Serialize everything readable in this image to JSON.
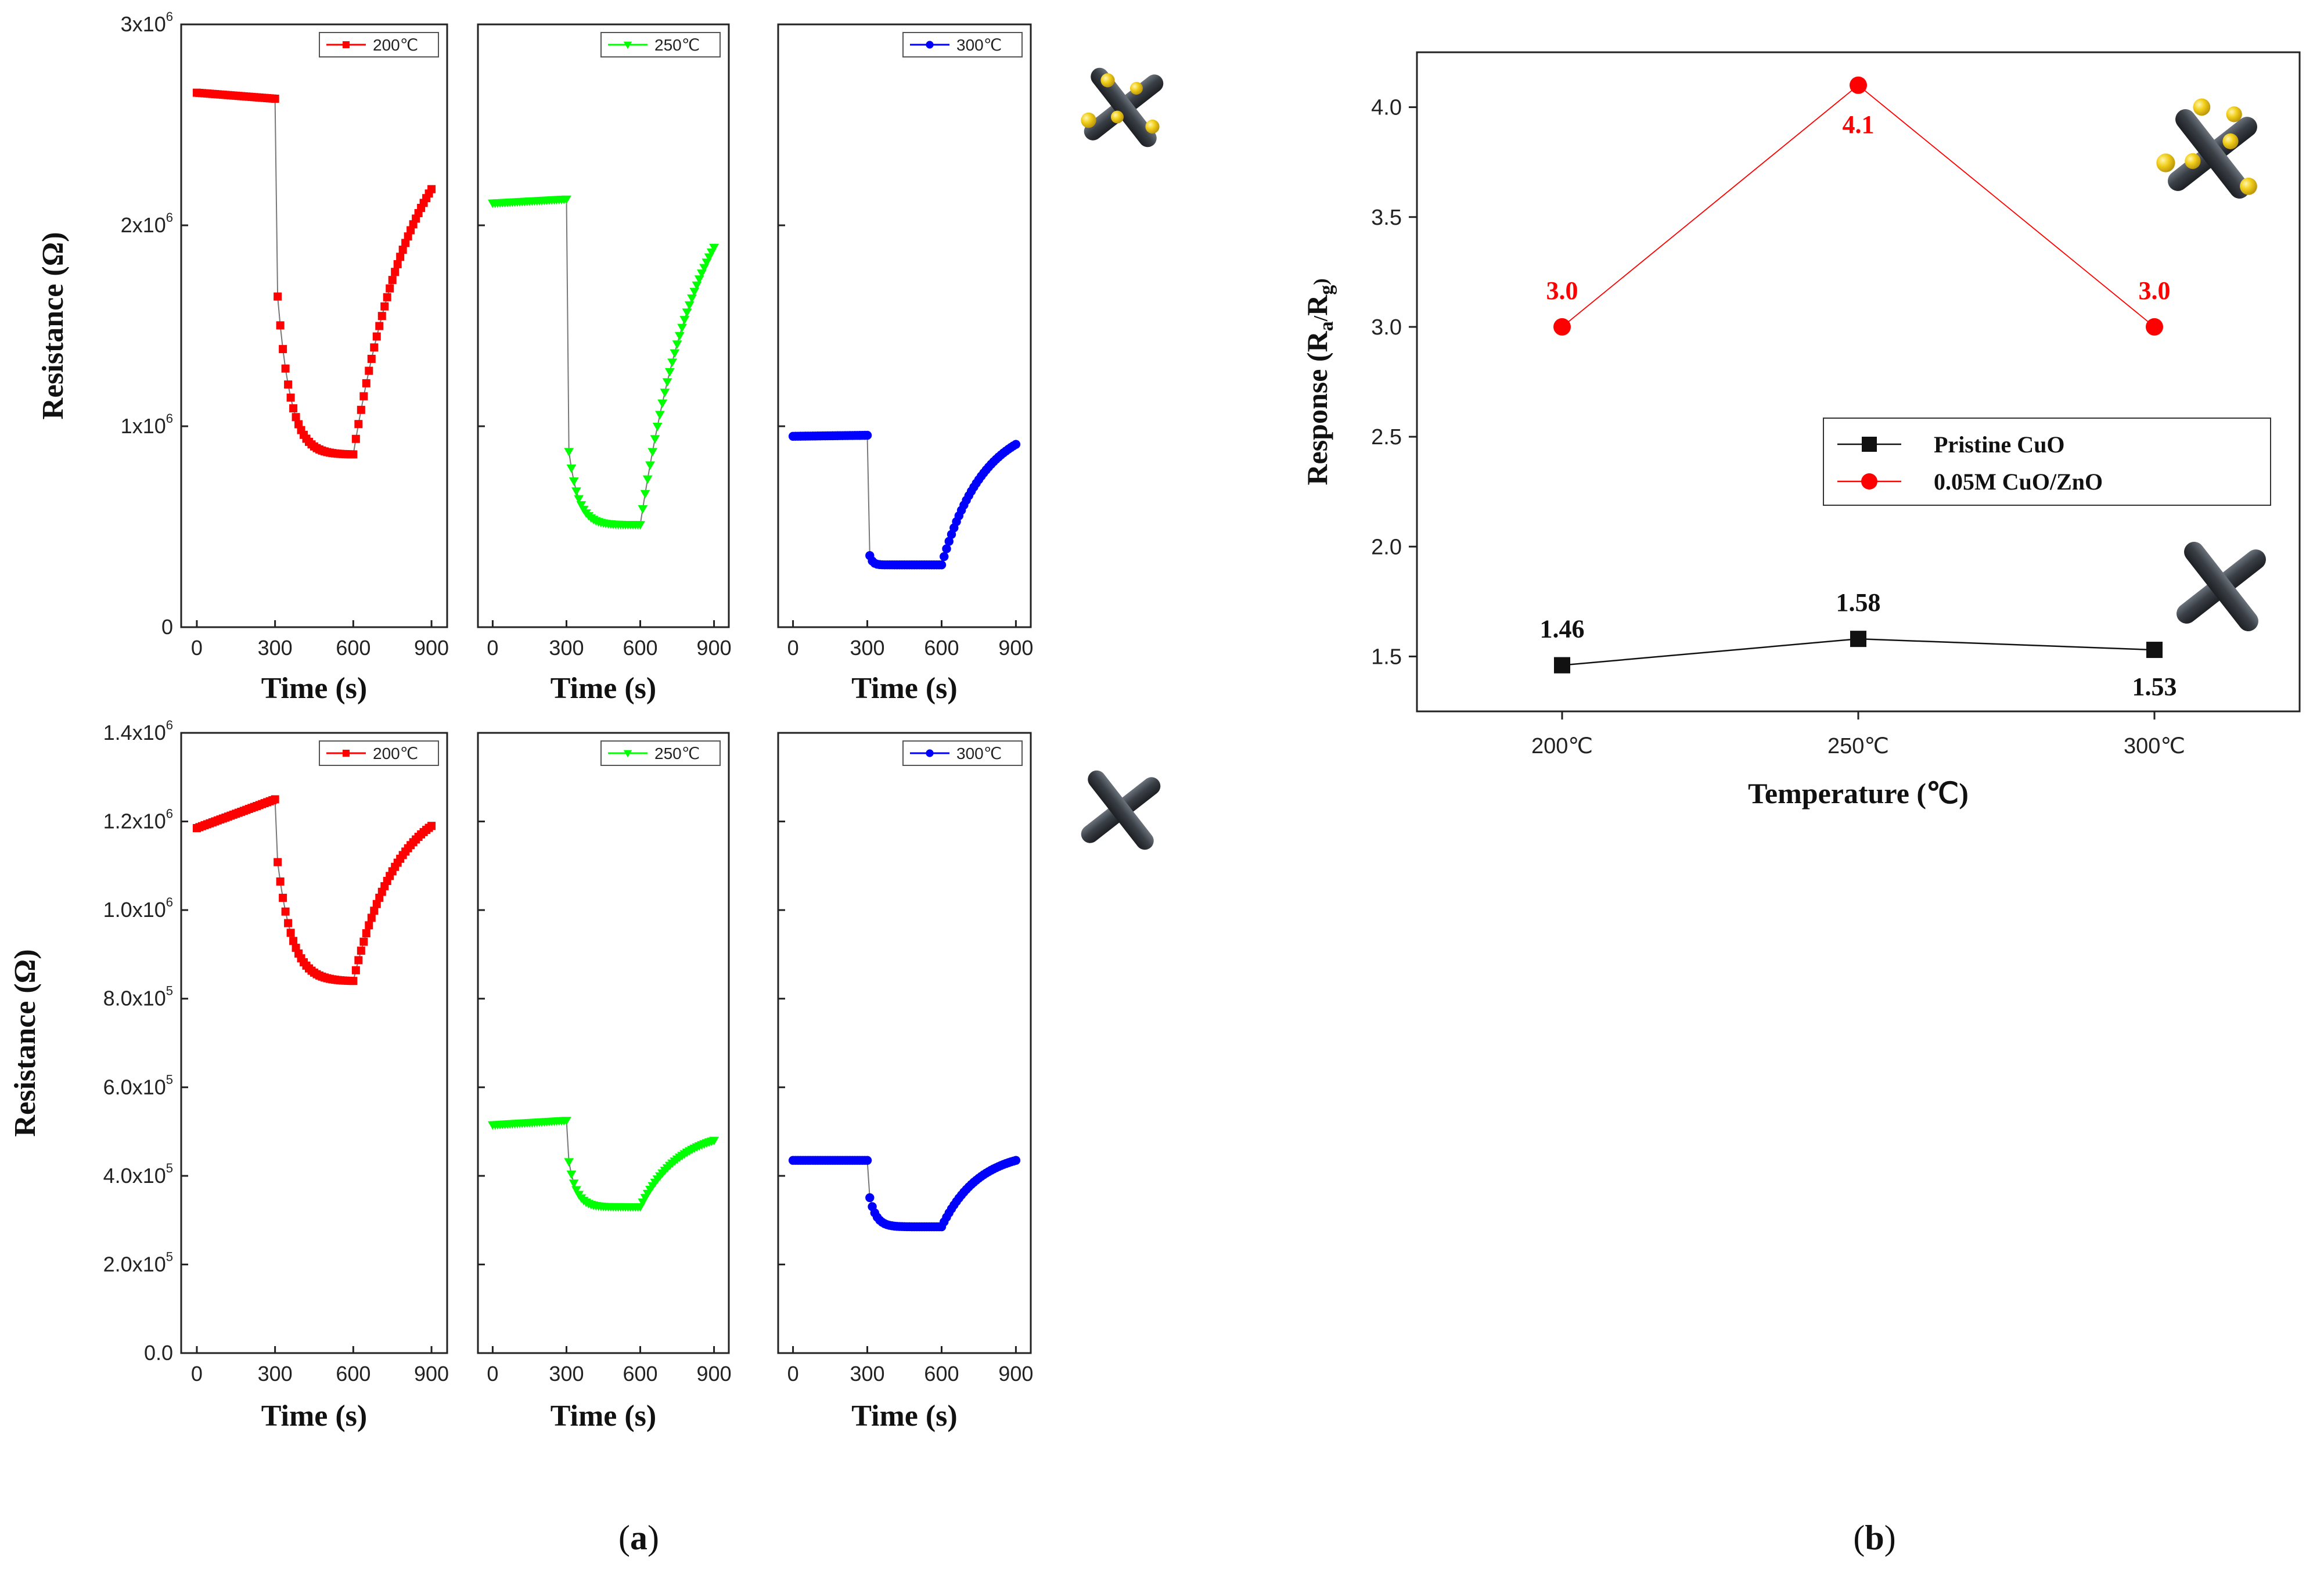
{
  "figure": {
    "panel_a_label": "a",
    "panel_b_label": "b"
  },
  "colors": {
    "t200": "#ff0000",
    "t250": "#00ff00",
    "t300": "#0000ff",
    "pristine": "#111111",
    "composite": "#ff0000",
    "rod": "#3a3f46",
    "particle": "#f2cf1b"
  },
  "icons": [
    "nanorods-with-particles-icon",
    "nanorods-icon"
  ],
  "chart_data": [
    {
      "type": "scatter",
      "id": "a-top-200",
      "legend": "200℃",
      "ylabel": "Resistance (Ω)",
      "xlabel": "Time (s)",
      "xlim": [
        -60,
        960
      ],
      "ylim": [
        0,
        3000000
      ],
      "xticks": [
        0,
        300,
        600,
        900
      ],
      "yticks": [
        {
          "v": 0,
          "m": "0",
          "e": ""
        },
        {
          "v": 1000000,
          "m": "1x10",
          "e": "6"
        },
        {
          "v": 2000000,
          "m": "2x10",
          "e": "6"
        },
        {
          "v": 3000000,
          "m": "3x10",
          "e": "6"
        }
      ],
      "base": 2660000,
      "base_end": 2630000,
      "low": 860000,
      "end": 2180000,
      "drop_start": 1820000,
      "drop_tau": 60,
      "rec_tau": 230
    },
    {
      "type": "scatter",
      "id": "a-top-250",
      "legend": "250℃",
      "xlabel": "Time (s)",
      "xlim": [
        -60,
        960
      ],
      "ylim": [
        0,
        3000000
      ],
      "xticks": [
        0,
        300,
        600,
        900
      ],
      "yticks": [],
      "base": 2110000,
      "base_end": 2130000,
      "low": 510000,
      "end": 1890000,
      "drop_start": 980000,
      "drop_tau": 45,
      "rec_tau": 240
    },
    {
      "type": "scatter",
      "id": "a-top-300",
      "legend": "300℃",
      "xlabel": "Time (s)",
      "xlim": [
        -60,
        960
      ],
      "ylim": [
        0,
        3000000
      ],
      "xticks": [
        0,
        300,
        600,
        900
      ],
      "yticks": [],
      "base": 950000,
      "base_end": 955000,
      "low": 310000,
      "end": 910000,
      "drop_start": 420000,
      "drop_tau": 12,
      "rec_tau": 170
    },
    {
      "type": "scatter",
      "id": "a-bottom-200",
      "legend": "200℃",
      "ylabel": "Resistance (Ω)",
      "xlabel": "Time (s)",
      "xlim": [
        -60,
        960
      ],
      "ylim": [
        0,
        1400000
      ],
      "xticks": [
        0,
        300,
        600,
        900
      ],
      "yticks": [
        {
          "v": 0,
          "m": "0.0",
          "e": ""
        },
        {
          "v": 200000,
          "m": "2.0x10",
          "e": "5"
        },
        {
          "v": 400000,
          "m": "4.0x10",
          "e": "5"
        },
        {
          "v": 600000,
          "m": "6.0x10",
          "e": "5"
        },
        {
          "v": 800000,
          "m": "8.0x10",
          "e": "5"
        },
        {
          "v": 1000000,
          "m": "1.0x10",
          "e": "6"
        },
        {
          "v": 1200000,
          "m": "1.2x10",
          "e": "6"
        },
        {
          "v": 1400000,
          "m": "1.4x10",
          "e": "6"
        }
      ],
      "base": 1185000,
      "base_end": 1250000,
      "low": 840000,
      "end": 1190000,
      "drop_start": 1160000,
      "drop_tau": 70,
      "rec_tau": 170
    },
    {
      "type": "scatter",
      "id": "a-bottom-250",
      "legend": "250℃",
      "xlabel": "Time (s)",
      "xlim": [
        -60,
        960
      ],
      "ylim": [
        0,
        1400000
      ],
      "xticks": [
        0,
        300,
        600,
        900
      ],
      "yticks": [],
      "base": 515000,
      "base_end": 525000,
      "low": 330000,
      "end": 480000,
      "drop_start": 470000,
      "drop_tau": 35,
      "rec_tau": 160
    },
    {
      "type": "scatter",
      "id": "a-bottom-300",
      "legend": "300℃",
      "xlabel": "Time (s)",
      "xlim": [
        -60,
        960
      ],
      "ylim": [
        0,
        1400000
      ],
      "xticks": [
        0,
        300,
        600,
        900
      ],
      "yticks": [],
      "base": 435000,
      "base_end": 435000,
      "low": 285000,
      "end": 435000,
      "drop_start": 380000,
      "drop_tau": 30,
      "rec_tau": 150
    },
    {
      "type": "line",
      "id": "b",
      "xlabel": "Temperature (℃)",
      "ylabel": "Response (R_a/R_g)",
      "categories": [
        "200℃",
        "250℃",
        "300℃"
      ],
      "ylim": [
        1.25,
        4.25
      ],
      "yticks": [
        "1.5",
        "2.0",
        "2.5",
        "3.0",
        "3.5",
        "4.0"
      ],
      "series": [
        {
          "name": "Pristine CuO",
          "values": [
            1.46,
            1.58,
            1.53
          ],
          "labels": [
            "1.46",
            "1.58",
            "1.53"
          ],
          "marker": "square"
        },
        {
          "name": "0.05M CuO/ZnO",
          "values": [
            3.0,
            4.1,
            3.0
          ],
          "labels": [
            "3.0",
            "4.1",
            "3.0"
          ],
          "marker": "circle"
        }
      ]
    }
  ]
}
